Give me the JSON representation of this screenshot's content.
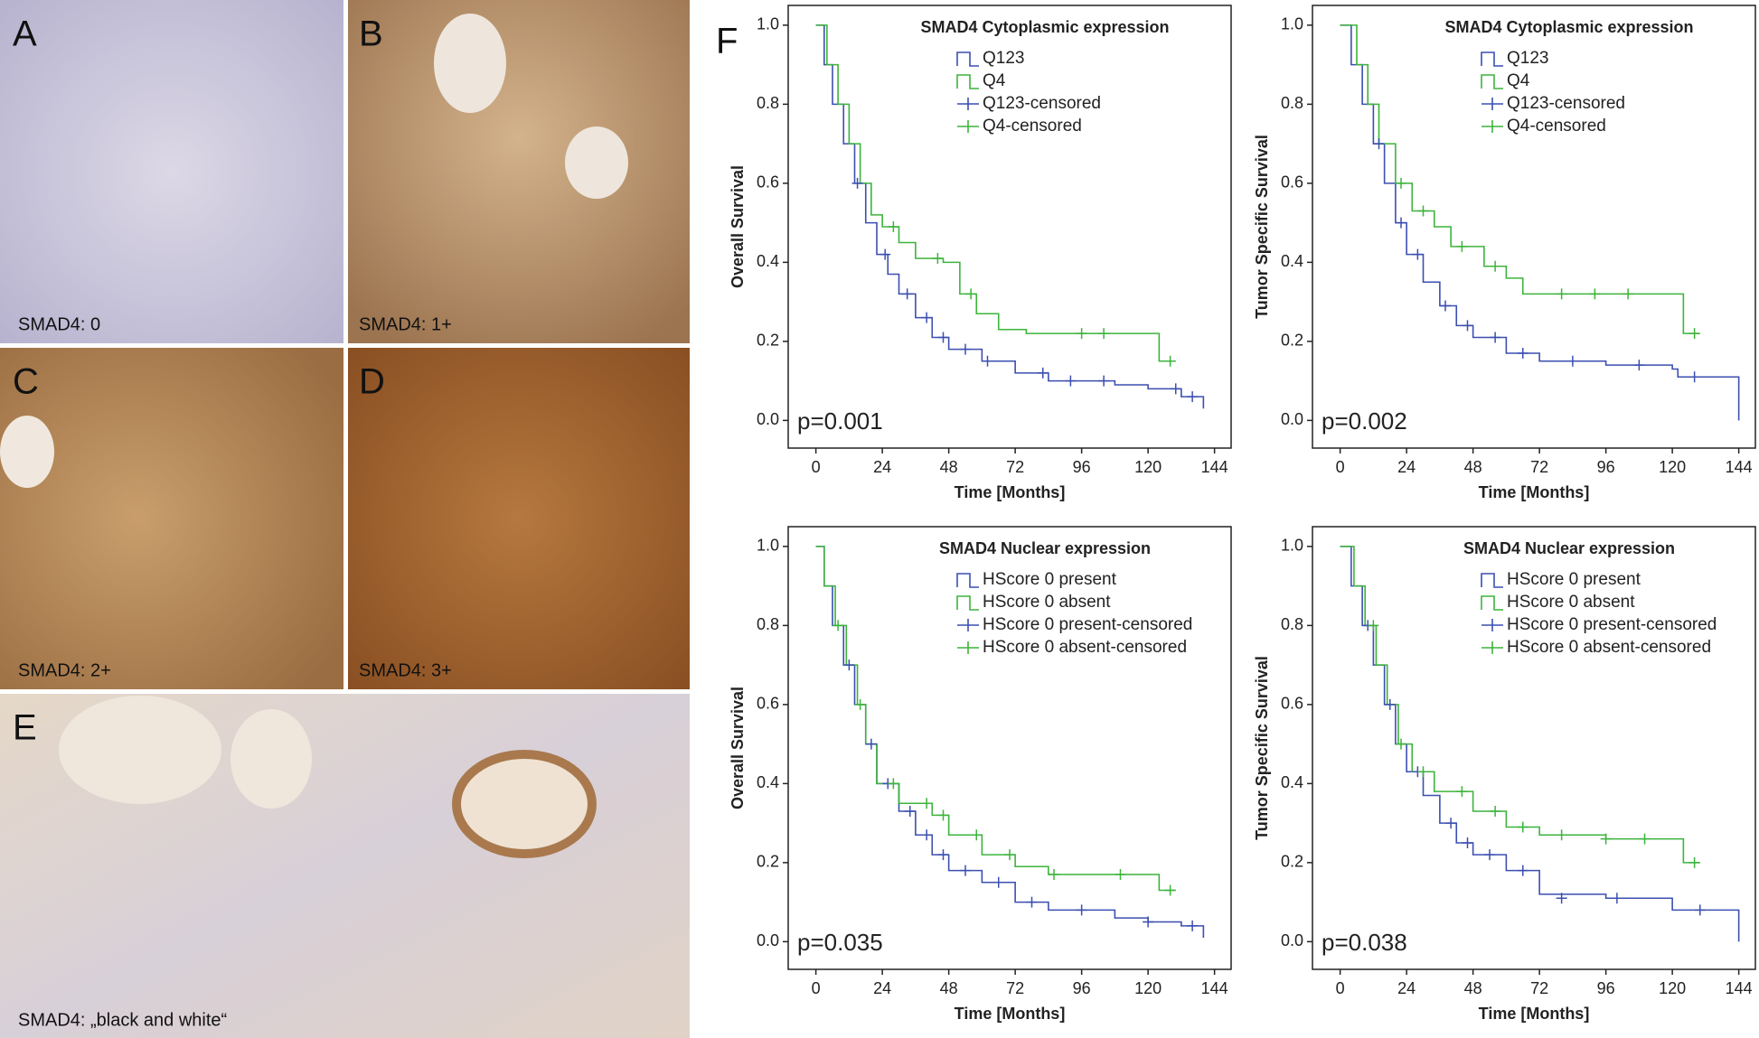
{
  "panels": [
    {
      "letter": "A",
      "caption": "SMAD4: 0"
    },
    {
      "letter": "B",
      "caption": "SMAD4: 1+"
    },
    {
      "letter": "C",
      "caption": "SMAD4: 2+"
    },
    {
      "letter": "D",
      "caption": "SMAD4: 3+"
    },
    {
      "letter": "E",
      "caption": "SMAD4: „black and white“"
    }
  ],
  "figure_letter": "F",
  "chart_data": [
    {
      "type": "line",
      "step": true,
      "legend_title": "SMAD4 Cytoplasmic expression",
      "ylabel": "Overall Survival",
      "xlabel": "Time [Months]",
      "annotation": "p=0.001",
      "xlim": [
        -10,
        150
      ],
      "ylim": [
        -0.07,
        1.05
      ],
      "xticks": [
        0,
        24,
        48,
        72,
        96,
        120,
        144
      ],
      "yticks": [
        {
          "value": 0,
          "label": "0.0"
        },
        {
          "value": 0.2,
          "label": "0.2"
        },
        {
          "value": 0.4,
          "label": "0.4"
        },
        {
          "value": 0.6,
          "label": "0.6"
        },
        {
          "value": 0.8,
          "label": "0.8"
        },
        {
          "value": 1,
          "label": "1.0"
        }
      ],
      "series": [
        {
          "name": "Q123",
          "color": "#3c4fb0",
          "x": [
            0,
            3,
            6,
            10,
            14,
            18,
            22,
            26,
            30,
            36,
            42,
            48,
            60,
            72,
            84,
            108,
            120,
            132,
            140
          ],
          "values": [
            1,
            0.9,
            0.8,
            0.7,
            0.6,
            0.5,
            0.42,
            0.37,
            0.32,
            0.26,
            0.21,
            0.18,
            0.15,
            0.12,
            0.1,
            0.09,
            0.08,
            0.06,
            0.03
          ]
        },
        {
          "name": "Q4",
          "color": "#3db43c",
          "x": [
            0,
            4,
            8,
            12,
            16,
            20,
            24,
            30,
            36,
            46,
            52,
            58,
            66,
            76,
            124,
            130
          ],
          "values": [
            1,
            0.9,
            0.8,
            0.7,
            0.6,
            0.52,
            0.49,
            0.45,
            0.41,
            0.4,
            0.32,
            0.27,
            0.23,
            0.22,
            0.15,
            0.15
          ]
        },
        {
          "name": "Q123-censored",
          "color": "#3c4fb0",
          "marker": "+",
          "x": [
            15,
            25,
            33,
            40,
            46,
            54,
            62,
            82,
            92,
            104,
            130,
            136
          ],
          "values": [
            0.6,
            0.42,
            0.32,
            0.26,
            0.21,
            0.18,
            0.15,
            0.12,
            0.1,
            0.1,
            0.08,
            0.06
          ]
        },
        {
          "name": "Q4-censored",
          "color": "#3db43c",
          "marker": "+",
          "x": [
            28,
            44,
            56,
            96,
            104,
            128
          ],
          "values": [
            0.49,
            0.41,
            0.32,
            0.22,
            0.22,
            0.15
          ]
        }
      ]
    },
    {
      "type": "line",
      "step": true,
      "legend_title": "SMAD4 Cytoplasmic expression",
      "ylabel": "Tumor Specific Survival",
      "xlabel": "Time [Months]",
      "annotation": "p=0.002",
      "xlim": [
        -10,
        150
      ],
      "ylim": [
        -0.07,
        1.05
      ],
      "xticks": [
        0,
        24,
        48,
        72,
        96,
        120,
        144
      ],
      "yticks": [
        {
          "value": 0,
          "label": "0.0"
        },
        {
          "value": 0.2,
          "label": "0.2"
        },
        {
          "value": 0.4,
          "label": "0.4"
        },
        {
          "value": 0.6,
          "label": "0.6"
        },
        {
          "value": 0.8,
          "label": "0.8"
        },
        {
          "value": 1,
          "label": "1.0"
        }
      ],
      "series": [
        {
          "name": "Q123",
          "color": "#3c4fb0",
          "x": [
            0,
            4,
            8,
            12,
            16,
            20,
            24,
            30,
            36,
            42,
            48,
            60,
            72,
            96,
            120,
            122,
            144
          ],
          "values": [
            1,
            0.9,
            0.8,
            0.7,
            0.6,
            0.5,
            0.42,
            0.35,
            0.29,
            0.24,
            0.21,
            0.17,
            0.15,
            0.14,
            0.13,
            0.11,
            0
          ]
        },
        {
          "name": "Q4",
          "color": "#3db43c",
          "x": [
            0,
            6,
            10,
            14,
            20,
            26,
            34,
            40,
            52,
            60,
            66,
            124,
            130
          ],
          "values": [
            1,
            0.9,
            0.8,
            0.7,
            0.6,
            0.53,
            0.49,
            0.44,
            0.39,
            0.36,
            0.32,
            0.22,
            0.22
          ]
        },
        {
          "name": "Q123-censored",
          "color": "#3c4fb0",
          "marker": "+",
          "x": [
            14,
            22,
            28,
            38,
            46,
            56,
            66,
            84,
            108,
            128
          ],
          "values": [
            0.7,
            0.5,
            0.42,
            0.29,
            0.24,
            0.21,
            0.17,
            0.15,
            0.14,
            0.11
          ]
        },
        {
          "name": "Q4-censored",
          "color": "#3db43c",
          "marker": "+",
          "x": [
            22,
            30,
            44,
            56,
            80,
            92,
            104,
            128
          ],
          "values": [
            0.6,
            0.53,
            0.44,
            0.39,
            0.32,
            0.32,
            0.32,
            0.22
          ]
        }
      ]
    },
    {
      "type": "line",
      "step": true,
      "legend_title": "SMAD4 Nuclear expression",
      "ylabel": "Overall Survival",
      "xlabel": "Time [Months]",
      "annotation": "p=0.035",
      "xlim": [
        -10,
        150
      ],
      "ylim": [
        -0.07,
        1.05
      ],
      "xticks": [
        0,
        24,
        48,
        72,
        96,
        120,
        144
      ],
      "yticks": [
        {
          "value": 0,
          "label": "0.0"
        },
        {
          "value": 0.2,
          "label": "0.2"
        },
        {
          "value": 0.4,
          "label": "0.4"
        },
        {
          "value": 0.6,
          "label": "0.6"
        },
        {
          "value": 0.8,
          "label": "0.8"
        },
        {
          "value": 1,
          "label": "1.0"
        }
      ],
      "series": [
        {
          "name": "HScore 0 present",
          "color": "#3c4fb0",
          "x": [
            0,
            3,
            6,
            10,
            14,
            18,
            22,
            30,
            36,
            42,
            48,
            60,
            72,
            84,
            108,
            120,
            132,
            140
          ],
          "values": [
            1,
            0.9,
            0.8,
            0.7,
            0.6,
            0.5,
            0.4,
            0.33,
            0.27,
            0.22,
            0.18,
            0.15,
            0.1,
            0.08,
            0.06,
            0.05,
            0.04,
            0.01
          ]
        },
        {
          "name": "HScore 0 absent",
          "color": "#3db43c",
          "x": [
            0,
            3,
            7,
            11,
            15,
            18,
            22,
            30,
            42,
            48,
            60,
            72,
            84,
            124,
            130
          ],
          "values": [
            1,
            0.9,
            0.8,
            0.7,
            0.6,
            0.5,
            0.4,
            0.35,
            0.32,
            0.27,
            0.22,
            0.19,
            0.17,
            0.13,
            0.13
          ]
        },
        {
          "name": "HScore 0 present-censored",
          "color": "#3c4fb0",
          "marker": "+",
          "x": [
            12,
            20,
            26,
            34,
            40,
            46,
            54,
            66,
            78,
            96,
            120,
            136
          ],
          "values": [
            0.7,
            0.5,
            0.4,
            0.33,
            0.27,
            0.22,
            0.18,
            0.15,
            0.1,
            0.08,
            0.05,
            0.04
          ]
        },
        {
          "name": "HScore 0 absent-censored",
          "color": "#3db43c",
          "marker": "+",
          "x": [
            8,
            16,
            28,
            40,
            46,
            58,
            70,
            86,
            110,
            128
          ],
          "values": [
            0.8,
            0.6,
            0.4,
            0.35,
            0.32,
            0.27,
            0.22,
            0.17,
            0.17,
            0.13
          ]
        }
      ]
    },
    {
      "type": "line",
      "step": true,
      "legend_title": "SMAD4 Nuclear expression",
      "ylabel": "Tumor Specific Survival",
      "xlabel": "Time [Months]",
      "annotation": "p=0.038",
      "xlim": [
        -10,
        150
      ],
      "ylim": [
        -0.07,
        1.05
      ],
      "xticks": [
        0,
        24,
        48,
        72,
        96,
        120,
        144
      ],
      "yticks": [
        {
          "value": 0,
          "label": "0.0"
        },
        {
          "value": 0.2,
          "label": "0.2"
        },
        {
          "value": 0.4,
          "label": "0.4"
        },
        {
          "value": 0.6,
          "label": "0.6"
        },
        {
          "value": 0.8,
          "label": "0.8"
        },
        {
          "value": 1,
          "label": "1.0"
        }
      ],
      "series": [
        {
          "name": "HScore 0 present",
          "color": "#3c4fb0",
          "x": [
            0,
            4,
            8,
            12,
            16,
            20,
            24,
            30,
            36,
            42,
            48,
            60,
            72,
            96,
            120,
            144
          ],
          "values": [
            1,
            0.9,
            0.8,
            0.7,
            0.6,
            0.5,
            0.43,
            0.37,
            0.3,
            0.25,
            0.22,
            0.18,
            0.12,
            0.11,
            0.08,
            0
          ]
        },
        {
          "name": "HScore 0 absent",
          "color": "#3db43c",
          "x": [
            0,
            5,
            9,
            13,
            17,
            21,
            26,
            34,
            48,
            60,
            72,
            96,
            124,
            130
          ],
          "values": [
            1,
            0.9,
            0.8,
            0.7,
            0.6,
            0.5,
            0.43,
            0.38,
            0.33,
            0.29,
            0.27,
            0.26,
            0.2,
            0.2
          ]
        },
        {
          "name": "HScore 0 present-censored",
          "color": "#3c4fb0",
          "marker": "+",
          "x": [
            10,
            18,
            28,
            40,
            46,
            54,
            66,
            80,
            100,
            130
          ],
          "values": [
            0.8,
            0.6,
            0.43,
            0.3,
            0.25,
            0.22,
            0.18,
            0.11,
            0.11,
            0.08
          ]
        },
        {
          "name": "HScore 0 absent-censored",
          "color": "#3db43c",
          "marker": "+",
          "x": [
            12,
            22,
            30,
            44,
            56,
            66,
            80,
            96,
            110,
            128
          ],
          "values": [
            0.8,
            0.5,
            0.43,
            0.38,
            0.33,
            0.29,
            0.27,
            0.26,
            0.26,
            0.2
          ]
        }
      ]
    }
  ]
}
